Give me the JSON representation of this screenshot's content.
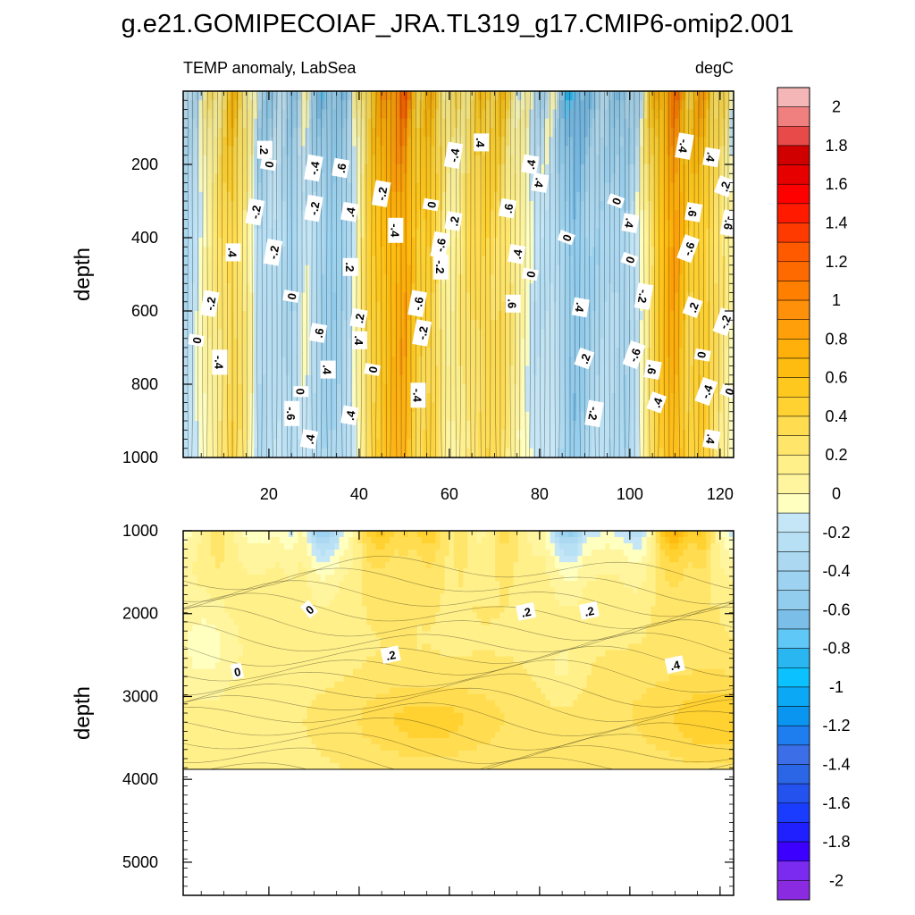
{
  "chart_data": {
    "type": "heatmap",
    "title": "g.e21.GOMIPECOIAF_JRA.TL319_g17.CMIP6-omip2.001",
    "subtitle_left": "TEMP anomaly, LabSea",
    "subtitle_right": "degC",
    "xlim": [
      1,
      123
    ],
    "x_ticks": [
      "20",
      "40",
      "60",
      "80",
      "100",
      "120"
    ],
    "panels": [
      {
        "name": "upper",
        "ylabel": "depth",
        "ylim": [
          0,
          1000
        ],
        "y_ticks": [
          "200",
          "400",
          "600",
          "800",
          "1000"
        ],
        "contour_labels": [
          ".2",
          "0",
          "-.2",
          ".4",
          "-.2",
          "0",
          "-.4",
          "-.2",
          "0",
          "-.6",
          "-.4",
          "-.2",
          "0",
          ".4",
          ".6",
          ".4",
          ".6",
          ".4",
          ".2",
          ".4",
          ".2",
          ".4",
          "0",
          "-.2",
          "-.4",
          "-.6",
          "-.2",
          "-.4",
          "0",
          "-.6",
          "-.2",
          "-.4",
          ".2",
          ".4",
          ".6",
          ".4",
          ".6",
          ".4",
          "0"
        ]
      },
      {
        "name": "lower",
        "ylabel": "depth",
        "ylim": [
          1000,
          5400
        ],
        "y_ticks": [
          "1000",
          "2000",
          "3000",
          "4000",
          "5000"
        ],
        "data_bottom_depth": 3880,
        "contour_labels": [
          "0",
          "0",
          ".2",
          ".2",
          ".2",
          ".4"
        ]
      }
    ],
    "colorbar": {
      "min": -2.1,
      "max": 2.1,
      "step": 0.1,
      "tick_labels": [
        "2",
        "1.8",
        "1.6",
        "1.4",
        "1.2",
        "1",
        "0.8",
        "0.6",
        "0.4",
        "0.2",
        "0",
        "-0.2",
        "-0.4",
        "-0.6",
        "-0.8",
        "-1",
        "-1.2",
        "-1.4",
        "-1.6",
        "-1.8",
        "-2"
      ],
      "colors": [
        "#8a2be2",
        "#7b2bf0",
        "#3c00ff",
        "#2020ff",
        "#1a3cff",
        "#2452ee",
        "#2a66e6",
        "#3c6ee8",
        "#1e7ef0",
        "#0a96f0",
        "#0aa8f5",
        "#0bc1ff",
        "#2ab6f0",
        "#60c8f6",
        "#7bbfe9",
        "#92cdee",
        "#9dd3f0",
        "#acd9f1",
        "#b8e0f5",
        "#c4e6f6",
        "#ffffc0",
        "#fff59e",
        "#fff08a",
        "#ffe56a",
        "#ffdc50",
        "#ffd232",
        "#ffc81e",
        "#ffbc10",
        "#ffb00a",
        "#ffa00a",
        "#ff900a",
        "#ff7f00",
        "#ff6a00",
        "#ff5a00",
        "#ff3a00",
        "#ff1a00",
        "#ff0000",
        "#e60000",
        "#d10000",
        "#e84a4a",
        "#f08080",
        "#f4b6b6"
      ]
    }
  }
}
